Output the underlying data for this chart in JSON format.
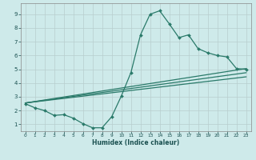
{
  "xlabel": "Humidex (Indice chaleur)",
  "bg_color": "#ceeaea",
  "grid_color": "#b8cece",
  "line_color": "#2a7a6a",
  "xlim": [
    -0.5,
    23.5
  ],
  "ylim": [
    0.5,
    9.8
  ],
  "xticks": [
    0,
    1,
    2,
    3,
    4,
    5,
    6,
    7,
    8,
    9,
    10,
    11,
    12,
    13,
    14,
    15,
    16,
    17,
    18,
    19,
    20,
    21,
    22,
    23
  ],
  "yticks": [
    1,
    2,
    3,
    4,
    5,
    6,
    7,
    8,
    9
  ],
  "line1_x": [
    0,
    1,
    2,
    3,
    4,
    5,
    6,
    7,
    8,
    9,
    10,
    11,
    12,
    13,
    14,
    15,
    16,
    17,
    18,
    19,
    20,
    21,
    22,
    23
  ],
  "line1_y": [
    2.5,
    2.2,
    2.0,
    1.65,
    1.7,
    1.45,
    1.05,
    0.75,
    0.75,
    1.55,
    3.05,
    4.75,
    7.5,
    9.0,
    9.25,
    8.3,
    7.3,
    7.5,
    6.5,
    6.2,
    6.0,
    5.9,
    5.05,
    5.0
  ],
  "line2_x": [
    0,
    23
  ],
  "line2_y": [
    2.55,
    5.05
  ],
  "line3_x": [
    0,
    23
  ],
  "line3_y": [
    2.55,
    4.75
  ],
  "line4_x": [
    0,
    23
  ],
  "line4_y": [
    2.55,
    4.45
  ]
}
